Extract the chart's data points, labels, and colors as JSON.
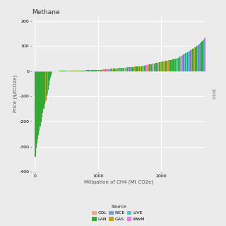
{
  "title": "Methane",
  "xlabel": "Mitigation of CH4 (Mt CO2e)",
  "ylabel": "Price ($/tCO2e)",
  "ylim": [
    -400,
    220
  ],
  "xlim": [
    -50,
    2700
  ],
  "yticks": [
    -400,
    -300,
    -200,
    -100,
    0,
    100,
    200
  ],
  "xticks": [
    0,
    1000,
    2000
  ],
  "bg_color": "#ebebeb",
  "grid_color": "#ffffff",
  "source_colors": {
    "COL": "#f4a582",
    "GAS": "#c8a020",
    "LAN": "#33aa33",
    "LIVE": "#44cccc",
    "RICE": "#7799dd",
    "WWM": "#ee77ee"
  },
  "right_label": "2030"
}
